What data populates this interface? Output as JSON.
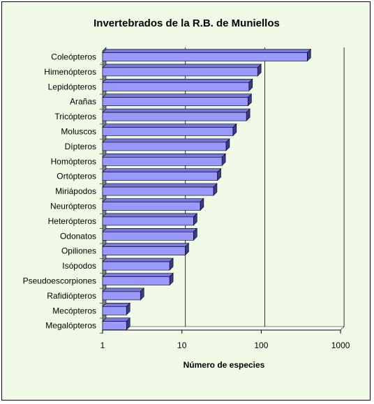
{
  "chart_data": {
    "type": "bar",
    "orientation": "horizontal",
    "title": "Invertebrados de la R.B. de Muniellos",
    "xlabel": "Número de especies",
    "ylabel": "",
    "x_scale": "log",
    "xlim": [
      1,
      1000
    ],
    "x_ticks": [
      "1",
      "10",
      "100",
      "1000"
    ],
    "grid": "vertical major",
    "legend": "none",
    "colors": {
      "background": "#f0fae6",
      "bar_face": "#9999ff",
      "bar_top": "#7777dd",
      "bar_side": "#3a3a8c",
      "wall": "#808080",
      "floor": "#ffffff"
    },
    "categories": [
      "Coleópteros",
      "Himenópteros",
      "Lepidópteros",
      "Arañas",
      "Tricópteros",
      "Moluscos",
      "Dípteros",
      "Homópteros",
      "Ortópteros",
      "Miriápodos",
      "Neurópteros",
      "Heterópteros",
      "Odonatos",
      "Opiliones",
      "Isópodos",
      "Pseudoescorpiones",
      "Rafidiópteros",
      "Mecópteros",
      "Megalópteros"
    ],
    "values": [
      380,
      90,
      70,
      68,
      65,
      44,
      36,
      32,
      28,
      25,
      17,
      14,
      14,
      11,
      7,
      7,
      3,
      2,
      2
    ]
  }
}
